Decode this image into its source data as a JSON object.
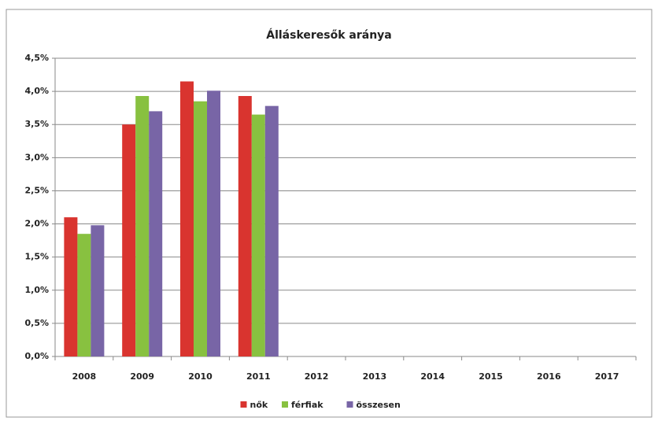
{
  "chart_data": {
    "type": "bar",
    "title": "Álláskeresők aránya",
    "categories": [
      "2008",
      "2009",
      "2010",
      "2011",
      "2012",
      "2013",
      "2014",
      "2015",
      "2016",
      "2017"
    ],
    "series": [
      {
        "name": "nők",
        "color": "#d9342f",
        "values": [
          2.1,
          3.5,
          4.15,
          3.93,
          null,
          null,
          null,
          null,
          null,
          null
        ]
      },
      {
        "name": "férfiak",
        "color": "#88c140",
        "values": [
          1.85,
          3.93,
          3.85,
          3.65,
          null,
          null,
          null,
          null,
          null,
          null
        ]
      },
      {
        "name": "összesen",
        "color": "#7865a6",
        "values": [
          1.98,
          3.7,
          4.01,
          3.78,
          null,
          null,
          null,
          null,
          null,
          null
        ]
      }
    ],
    "ylim": [
      0,
      4.5
    ],
    "yticks": [
      {
        "value": 0,
        "label": "0,0%"
      },
      {
        "value": 0.5,
        "label": "0,5%"
      },
      {
        "value": 1,
        "label": "1,0%"
      },
      {
        "value": 1.5,
        "label": "1,5%"
      },
      {
        "value": 2,
        "label": "2,0%"
      },
      {
        "value": 2.5,
        "label": "2,5%"
      },
      {
        "value": 3,
        "label": "3,0%"
      },
      {
        "value": 3.5,
        "label": "3,5%"
      },
      {
        "value": 4,
        "label": "4,0%"
      },
      {
        "value": 4.5,
        "label": "4,5%"
      }
    ],
    "grid": true,
    "legend": "bottom"
  }
}
